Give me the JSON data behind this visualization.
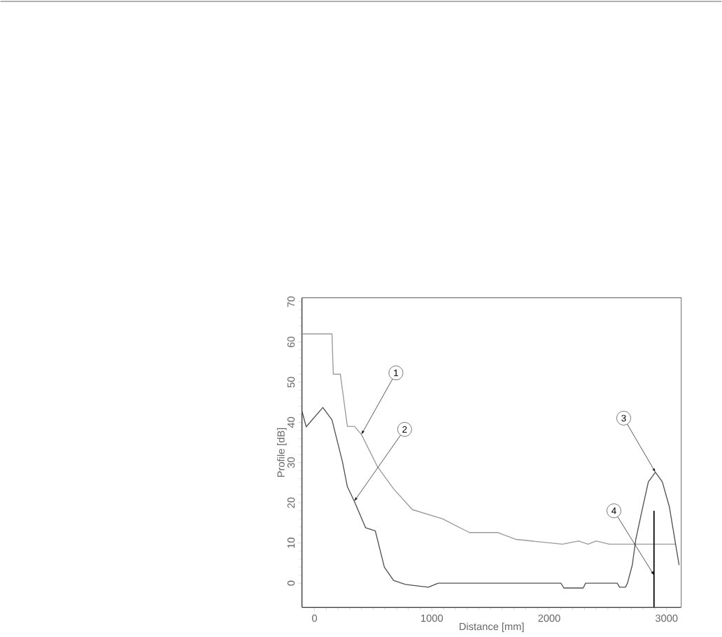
{
  "chart_data": {
    "type": "line",
    "xlabel": "Distance [mm]",
    "ylabel": "Profile [dB]",
    "xlim": [
      -107,
      3125
    ],
    "ylim": [
      -6,
      71
    ],
    "xticks": [
      0,
      1000,
      2000,
      3000
    ],
    "yticks": [
      0,
      10,
      20,
      30,
      40,
      50,
      60,
      70
    ],
    "series": [
      {
        "color": "#9a9a9a",
        "x": [
          -107,
          149,
          160,
          220,
          280,
          340,
          400,
          536,
          673,
          833,
          1090,
          1320,
          1560,
          1714,
          2113,
          2250,
          2330,
          2400,
          2512,
          3077
        ],
        "values": [
          62,
          62,
          52,
          52,
          39,
          39,
          37,
          29,
          23.5,
          18.3,
          16,
          12.6,
          12.6,
          10.9,
          9.7,
          10.5,
          9.7,
          10.5,
          9.7,
          9.7
        ]
      },
      {
        "color": "#505050",
        "x": [
          -107,
          -71,
          71,
          149,
          238,
          280,
          339,
          435,
          518,
          595,
          673,
          774,
          970,
          1054,
          2100,
          2125,
          2290,
          2310,
          2580,
          2600,
          2650,
          2667,
          2708,
          2738,
          2798,
          2845,
          2905,
          2964,
          3024,
          3077,
          3107
        ],
        "values": [
          42.8,
          38.9,
          43.7,
          40.6,
          30.2,
          24,
          20.4,
          13.8,
          13,
          4,
          0.7,
          -0.3,
          -1,
          0,
          0,
          -1.2,
          -1.2,
          0,
          0,
          -1,
          -1,
          0,
          4.5,
          10.9,
          19,
          25.2,
          27.6,
          25.2,
          19,
          9.7,
          4.5
        ]
      },
      {
        "color": "#000000",
        "x": [
          2893,
          2893
        ],
        "values": [
          -6,
          18
        ]
      }
    ],
    "annotations": [
      {
        "text": "1",
        "x": 400,
        "y": 37
      },
      {
        "text": "2",
        "x": 339,
        "y": 20.4
      },
      {
        "text": "3",
        "x": 2905,
        "y": 27.6
      },
      {
        "text": "4",
        "x": 2893,
        "y": 2
      }
    ]
  }
}
